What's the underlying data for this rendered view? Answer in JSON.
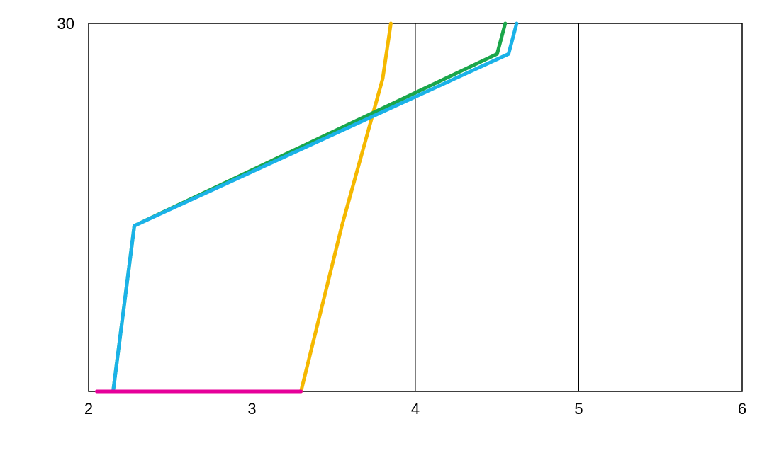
{
  "chart_data": {
    "type": "line",
    "title": "",
    "xlabel": "",
    "ylabel": "",
    "xlim": [
      2,
      6
    ],
    "ylim": [
      0,
      30
    ],
    "x_ticks": [
      2,
      3,
      4,
      5,
      6
    ],
    "y_ticks": [
      30
    ],
    "grid": true,
    "legend": "none",
    "series": [
      {
        "color": "#f5b800",
        "x": [
          3.3,
          3.55,
          3.8,
          3.85
        ],
        "y": [
          0,
          13.5,
          25.5,
          30
        ]
      },
      {
        "color": "#1aa64a",
        "x": [
          2.15,
          2.28,
          4.5,
          4.55
        ],
        "y": [
          0,
          13.5,
          27.5,
          30
        ]
      },
      {
        "color": "#1ab2e8",
        "x": [
          2.15,
          2.28,
          4.57,
          4.62
        ],
        "y": [
          0,
          13.5,
          27.5,
          30
        ]
      },
      {
        "color": "#e6009a",
        "x": [
          2.05,
          3.3
        ],
        "y": [
          0,
          0
        ]
      }
    ]
  }
}
